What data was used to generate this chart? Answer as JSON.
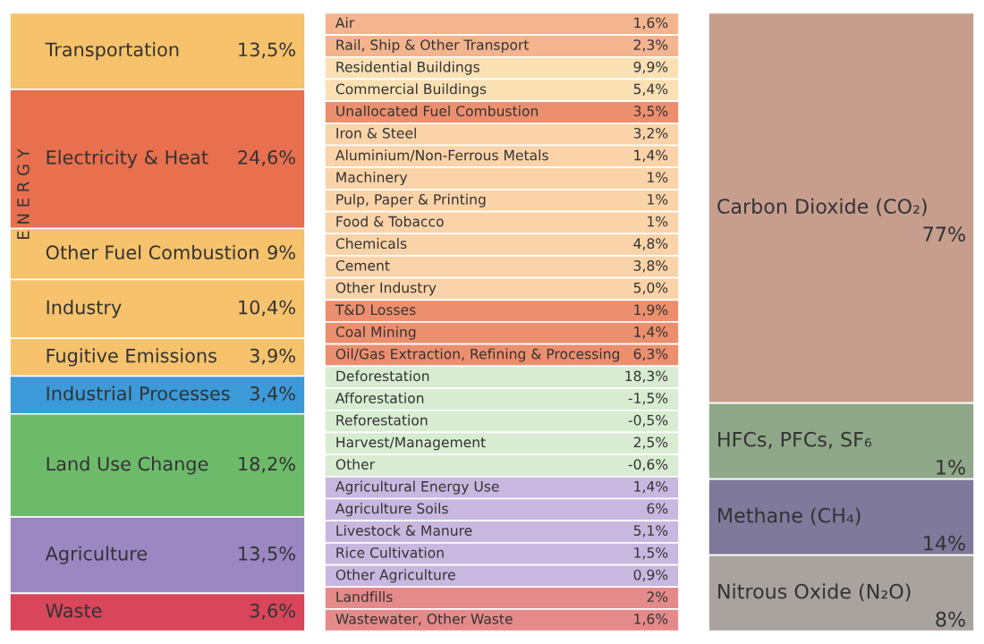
{
  "chart_data": [
    {
      "type": "other",
      "annotations": [
        "E N E R G Y"
      ],
      "categories": [
        "Transportation",
        "Electricity & Heat",
        "Other Fuel Combustion",
        "Industry",
        "Fugitive Emissions",
        "Industrial Processes",
        "Land Use Change",
        "Agriculture",
        "Waste"
      ],
      "values": [
        13.5,
        24.6,
        9,
        10.4,
        3.9,
        3.4,
        18.2,
        13.5,
        3.6
      ],
      "value_labels": [
        "13,5%",
        "24,6%",
        "9%",
        "10,4%",
        "3,9%",
        "3,4%",
        "18,2%",
        "13,5%",
        "3,6%"
      ],
      "colors": [
        "#f6c26b",
        "#e8704f",
        "#f6c26b",
        "#f6c26b",
        "#f6c26b",
        "#3c9ad8",
        "#6dbb6a",
        "#9b87c2",
        "#d9455a"
      ]
    },
    {
      "type": "other",
      "categories": [
        "Air",
        "Rail, Ship & Other Transport",
        "Residential Buildings",
        "Commercial Buildings",
        "Unallocated Fuel Combustion",
        "Iron & Steel",
        "Aluminium/Non-Ferrous Metals",
        "Machinery",
        "Pulp, Paper & Printing",
        "Food & Tobacco",
        "Chemicals",
        "Cement",
        "Other Industry",
        "T&D Losses",
        "Coal Mining",
        "Oil/Gas Extraction, Refining & Processing",
        "Deforestation",
        "Afforestation",
        "Reforestation",
        "Harvest/Management",
        "Other",
        "Agricultural Energy Use",
        "Agriculture Soils",
        "Livestock & Manure",
        "Rice Cultivation",
        "Other Agriculture",
        "Landfills",
        "Wastewater, Other Waste"
      ],
      "values": [
        1.6,
        2.3,
        9.9,
        5.4,
        3.5,
        3.2,
        1.4,
        1,
        1,
        1,
        4.8,
        3.8,
        5.0,
        1.9,
        1.4,
        6.3,
        18.3,
        -1.5,
        -0.5,
        2.5,
        -0.6,
        1.4,
        6,
        5.1,
        1.5,
        0.9,
        2,
        1.6
      ],
      "value_labels": [
        "1,6%",
        "2,3%",
        "9,9%",
        "5,4%",
        "3,5%",
        "3,2%",
        "1,4%",
        "1%",
        "1%",
        "1%",
        "4,8%",
        "3,8%",
        "5,0%",
        "1,9%",
        "1,4%",
        "6,3%",
        "18,3%",
        "-1,5%",
        "-0,5%",
        "2,5%",
        "-0,6%",
        "1,4%",
        "6%",
        "5,1%",
        "1,5%",
        "0,9%",
        "2%",
        "1,6%"
      ],
      "colors": [
        "#f3b48e",
        "#f3b48e",
        "#fbe0b4",
        "#fbe0b4",
        "#ec8f6e",
        "#fbd3a8",
        "#fbd3a8",
        "#fbd3a8",
        "#fbd3a8",
        "#fbd3a8",
        "#fbd3a8",
        "#fbd3a8",
        "#fbd3a8",
        "#ec8f6e",
        "#ec8f6e",
        "#ec8f6e",
        "#d8ecd2",
        "#d8ecd2",
        "#d8ecd2",
        "#d8ecd2",
        "#d8ecd2",
        "#c8b8e0",
        "#c8b8e0",
        "#c8b8e0",
        "#c8b8e0",
        "#c8b8e0",
        "#e58a8a",
        "#e58a8a"
      ]
    },
    {
      "type": "other",
      "categories": [
        "Carbon Dioxide (CO₂)",
        "HFCs, PFCs, SF₆",
        "Methane (CH₄)",
        "Nitrous Oxide (N₂O)"
      ],
      "values": [
        77,
        1,
        14,
        8
      ],
      "value_labels": [
        "77%",
        "1%",
        "14%",
        "8%"
      ],
      "colors": [
        "#c79e8e",
        "#8fa889",
        "#7f7a9c",
        "#a9a3a0"
      ]
    }
  ]
}
